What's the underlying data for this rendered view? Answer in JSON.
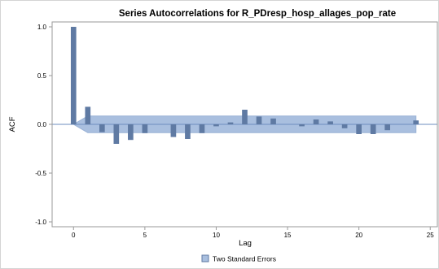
{
  "chart_data": {
    "type": "bar",
    "title": "Series Autocorrelations for R_PDresp_hosp_allages_pop_rate",
    "xlabel": "Lag",
    "ylabel": "ACF",
    "xlim": [
      -1.5,
      25.5
    ],
    "ylim": [
      -1.05,
      1.05
    ],
    "x_ticks": [
      0,
      5,
      10,
      15,
      20,
      25
    ],
    "x_tick_labels": [
      "0",
      "5",
      "10",
      "15",
      "20",
      "25"
    ],
    "y_ticks": [
      1.0,
      0.5,
      0.0,
      -0.5,
      -1.0
    ],
    "y_tick_labels": [
      "1.0",
      "0.5",
      "0.0",
      "-0.5",
      "-1.0"
    ],
    "grid": false,
    "reference_line": 0,
    "lags": [
      0,
      1,
      2,
      3,
      4,
      5,
      6,
      7,
      8,
      9,
      10,
      11,
      12,
      13,
      14,
      15,
      16,
      17,
      18,
      19,
      20,
      21,
      22,
      23,
      24
    ],
    "acf": [
      1.0,
      0.18,
      -0.08,
      -0.2,
      -0.16,
      -0.09,
      0.0,
      -0.13,
      -0.15,
      -0.09,
      -0.02,
      0.02,
      0.15,
      0.08,
      0.06,
      0.0,
      -0.02,
      0.05,
      0.03,
      -0.04,
      -0.1,
      -0.1,
      -0.06,
      0.0,
      0.04
    ],
    "std_error_band": {
      "name": "Two Standard Errors",
      "x": [
        0,
        1,
        24
      ],
      "upper": [
        0.0,
        0.085,
        0.085
      ],
      "lower": [
        0.0,
        -0.085,
        -0.085
      ]
    },
    "legend": {
      "position": "bottom",
      "entries": [
        "Two Standard Errors"
      ]
    },
    "colors": {
      "bar": "#5f7aa3",
      "band": "#a9bfdf",
      "band_edge": "#9ab2d6",
      "reference_line": "#6d8dbf",
      "axis": "#9a9a9a"
    }
  }
}
